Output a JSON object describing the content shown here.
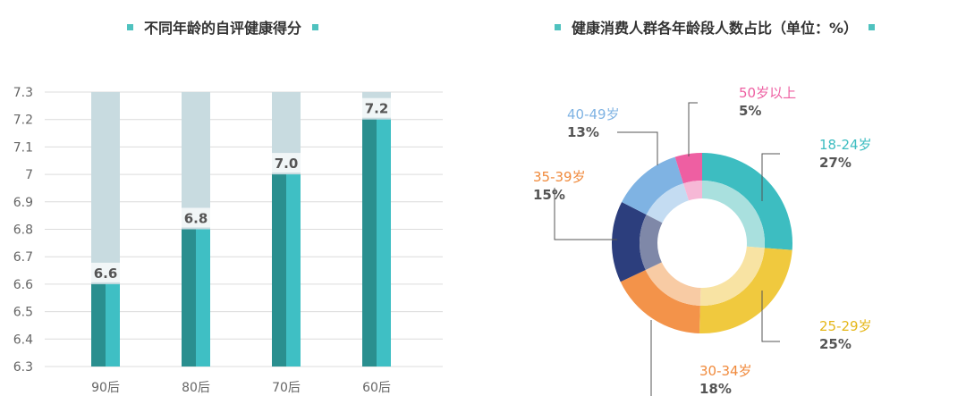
{
  "chart_data": [
    {
      "type": "bar",
      "title": "不同年龄的自评健康得分",
      "categories": [
        "90后",
        "80后",
        "70后",
        "60后"
      ],
      "values": [
        6.6,
        6.8,
        7.0,
        7.2
      ],
      "value_labels": [
        "6.6",
        "6.8",
        "7.0",
        "7.2"
      ],
      "yticks": [
        "6.3",
        "6.4",
        "6.5",
        "6.6",
        "6.7",
        "6.8",
        "6.9",
        "7",
        "7.1",
        "7.2",
        "7.3"
      ],
      "ylim": [
        6.3,
        7.3
      ],
      "grid": true,
      "colors": {
        "bar_dark": "#2a8f8f",
        "bar_light": "#3fbfc4",
        "background_bar": "#c8dbe0"
      }
    },
    {
      "type": "pie",
      "title": "健康消费人群各年龄段人数占比（单位：%）",
      "slices": [
        {
          "label": "18-24岁",
          "value": 27,
          "pct": "27%",
          "color": "#3dbdc1",
          "inner": "#a9e0de"
        },
        {
          "label": "25-29岁",
          "value": 25,
          "pct": "25%",
          "color": "#f0c93e",
          "inner": "#f8e3a3"
        },
        {
          "label": "30-34岁",
          "value": 18,
          "pct": "18%",
          "color": "#f3934a",
          "inner": "#f8cba4"
        },
        {
          "label": "35-39岁",
          "value": 15,
          "pct": "15%",
          "color": "#2c3e7d",
          "inner": "#7f88a8"
        },
        {
          "label": "40-49岁",
          "value": 13,
          "pct": "13%",
          "color": "#7fb3e3",
          "inner": "#c4dcf2"
        },
        {
          "label": "50岁以上",
          "value": 5,
          "pct": "5%",
          "color": "#ee5fa2",
          "inner": "#f6b8d6"
        }
      ],
      "label_colors": [
        "#3dbdc1",
        "#e5b71a",
        "#f08a3c",
        "#f08a3c",
        "#7fb3e3",
        "#ee5fa2"
      ]
    }
  ]
}
